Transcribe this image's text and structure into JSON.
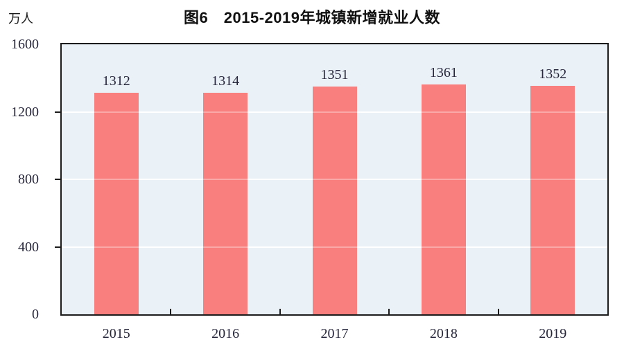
{
  "chart_data": {
    "type": "bar",
    "title": "图6　2015-2019年城镇新增就业人数",
    "ylabel": "万人",
    "xlabel": "",
    "categories": [
      "2015",
      "2016",
      "2017",
      "2018",
      "2019"
    ],
    "values": [
      1312,
      1314,
      1351,
      1361,
      1352
    ],
    "ylim": [
      0,
      1600
    ],
    "yticks": [
      0,
      400,
      800,
      1200,
      1600
    ],
    "grid": true,
    "legend": "none",
    "colors": {
      "bar": "#f97f7f",
      "plot_background": "#ebf2f7",
      "gridline": "#ffffff",
      "axis": "#1b1b1b",
      "label_text": "#26263c",
      "title_text": "#111111"
    }
  }
}
